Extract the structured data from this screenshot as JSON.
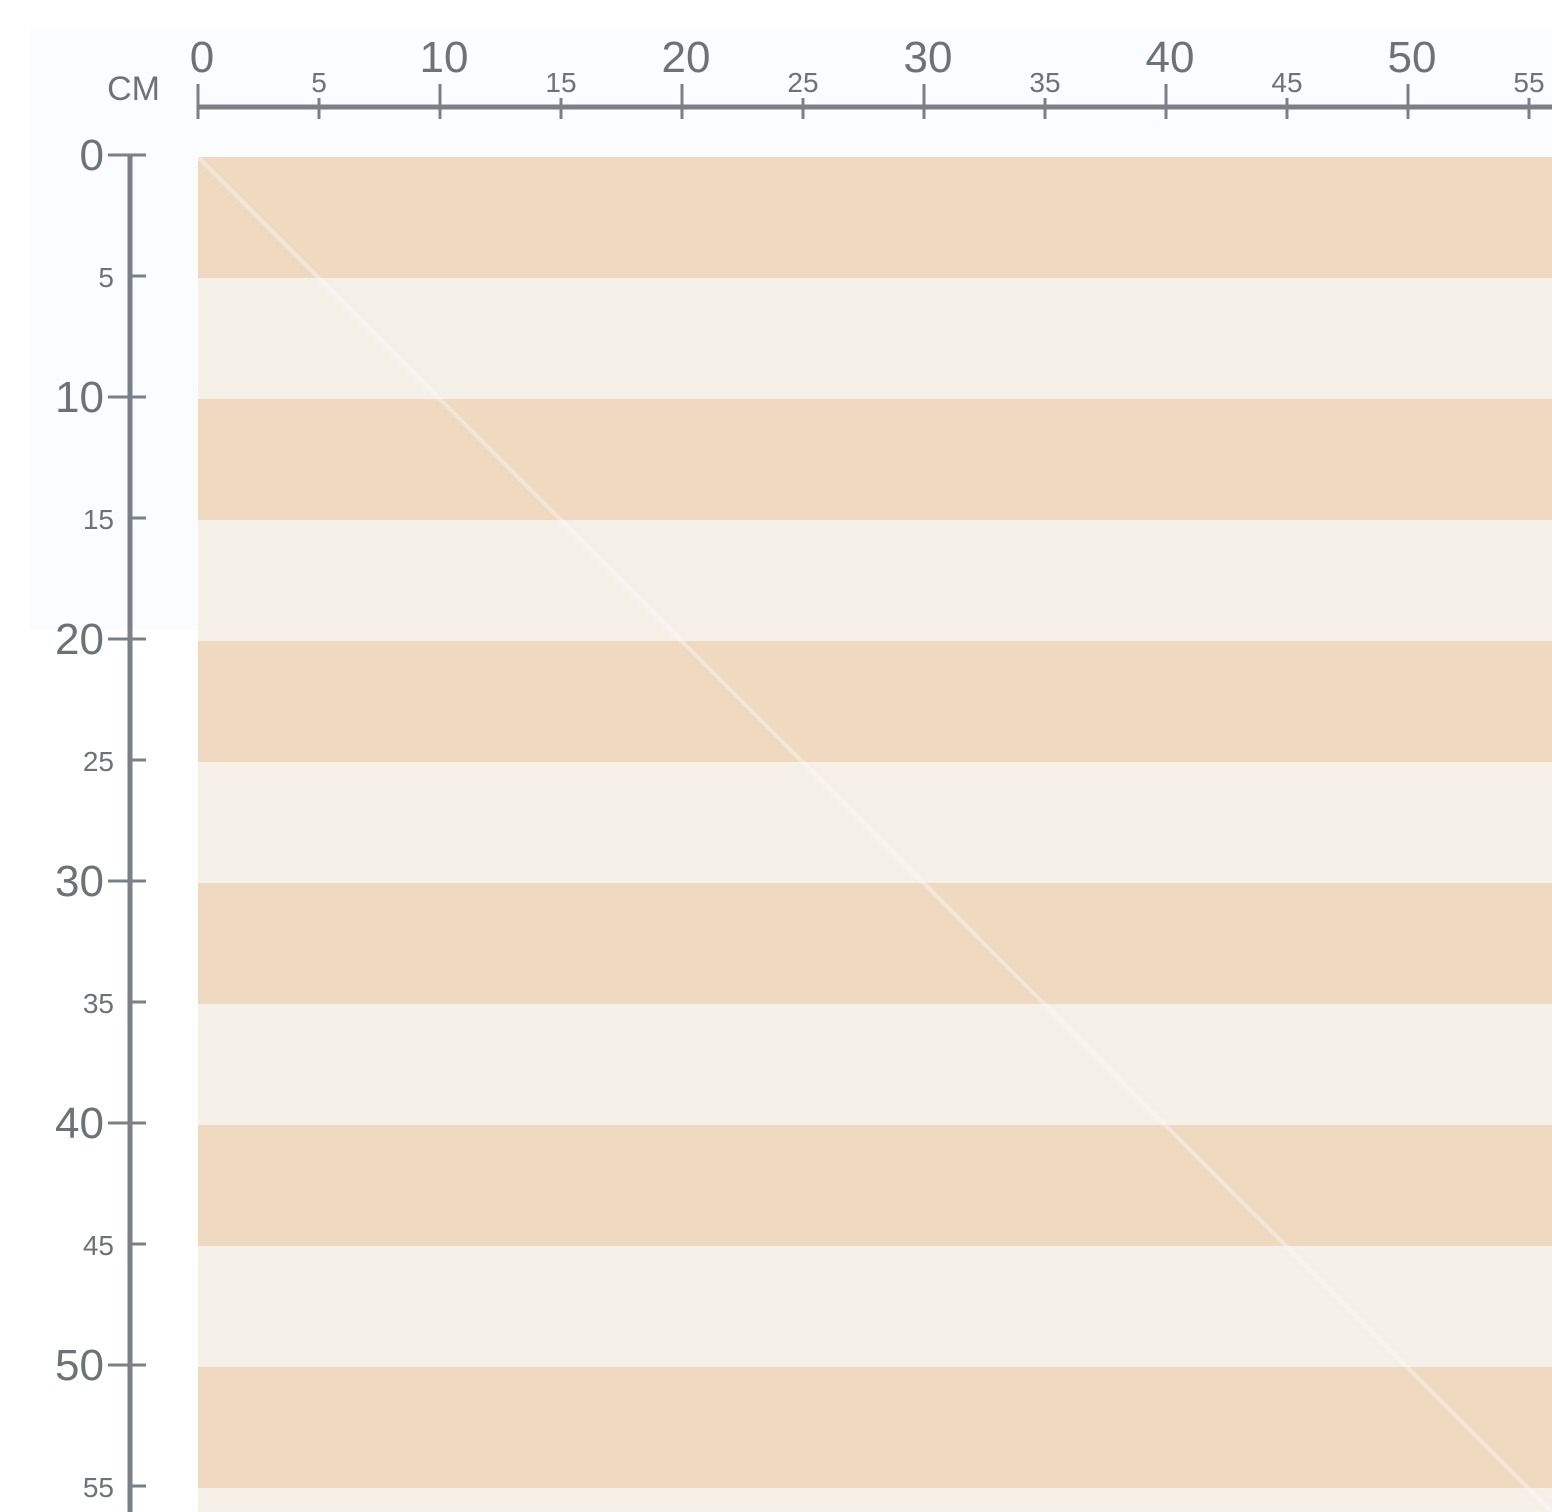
{
  "unit_label": "CM",
  "top_ruler": {
    "ticks": [
      0,
      5,
      10,
      15,
      20,
      25,
      30,
      35,
      40,
      45,
      50,
      55
    ]
  },
  "left_ruler": {
    "ticks": [
      0,
      5,
      10,
      15,
      20,
      25,
      30,
      35,
      40,
      45,
      50,
      55
    ]
  }
}
